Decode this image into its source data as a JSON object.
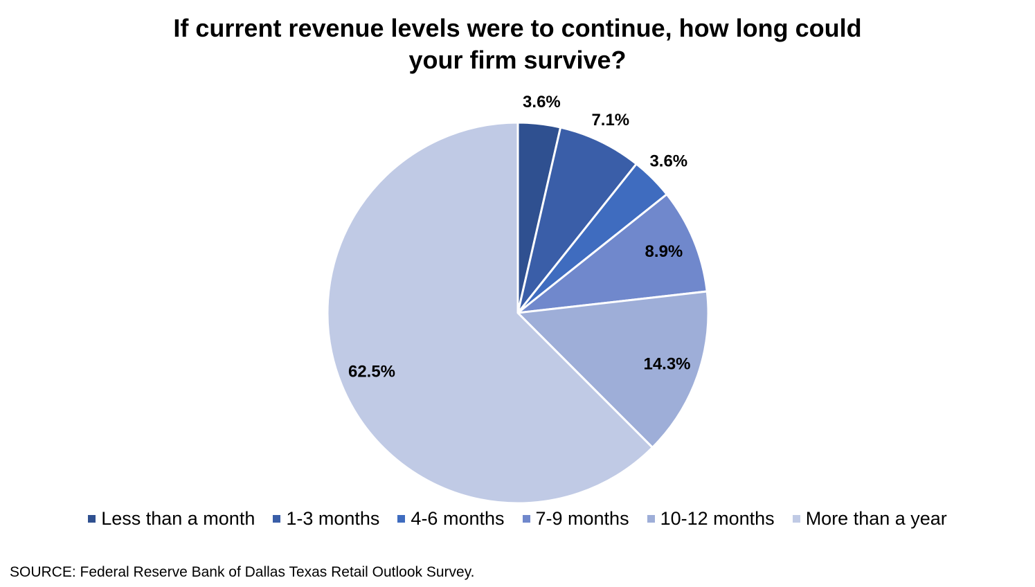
{
  "chart_data": {
    "type": "pie",
    "title_lines": [
      "If current revenue levels were to continue, how long could",
      "your firm survive?"
    ],
    "slices": [
      {
        "label": "Less than a month",
        "value": 3.6,
        "value_label": "3.6%",
        "color": "#2f5090"
      },
      {
        "label": "1-3 months",
        "value": 7.1,
        "value_label": "7.1%",
        "color": "#3a5ea8"
      },
      {
        "label": "4-6 months",
        "value": 3.6,
        "value_label": "3.6%",
        "color": "#3f6cbf"
      },
      {
        "label": "7-9 months",
        "value": 8.9,
        "value_label": "8.9%",
        "color": "#7088cc"
      },
      {
        "label": "10-12 months",
        "value": 14.3,
        "value_label": "14.3%",
        "color": "#9eaed8"
      },
      {
        "label": "More than a year",
        "value": 62.5,
        "value_label": "62.5%",
        "color": "#c0cae5"
      }
    ],
    "legend_position": "bottom"
  },
  "source": "SOURCE: Federal Reserve Bank of Dallas Texas Retail Outlook Survey."
}
